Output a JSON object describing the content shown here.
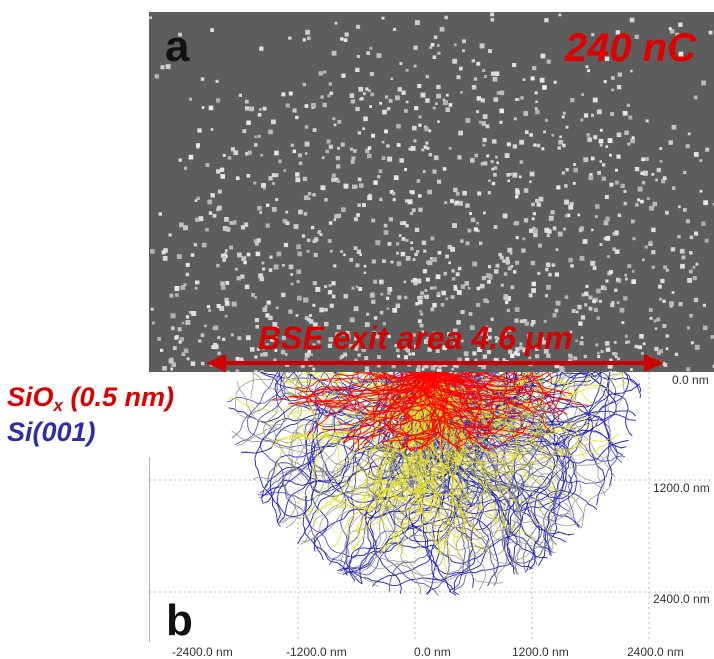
{
  "panel_a": {
    "letter": "a",
    "dose_label": "240 nC",
    "bse_label": "BSE exit area 4.6 μm"
  },
  "panel_b": {
    "letter": "b",
    "layers": {
      "oxide_main": "SiO",
      "oxide_sub": "x",
      "oxide_thickness": " (0.5 nm)",
      "substrate": "Si(001)"
    },
    "y_ticks": [
      "0.0 nm",
      "1200.0 nm",
      "2400.0 nm"
    ],
    "x_ticks": [
      "-2400.0 nm",
      "-1200.0 nm",
      "0.0 nm",
      "1200.0 nm",
      "2400.0 nm"
    ]
  },
  "colors": {
    "oxide_text": "#dd0000",
    "substrate_text": "#2e2ea8",
    "trajectory_backscatter": "#ff0000",
    "trajectory_core": "#e8e020",
    "trajectory_outer": "#2020c8"
  }
}
